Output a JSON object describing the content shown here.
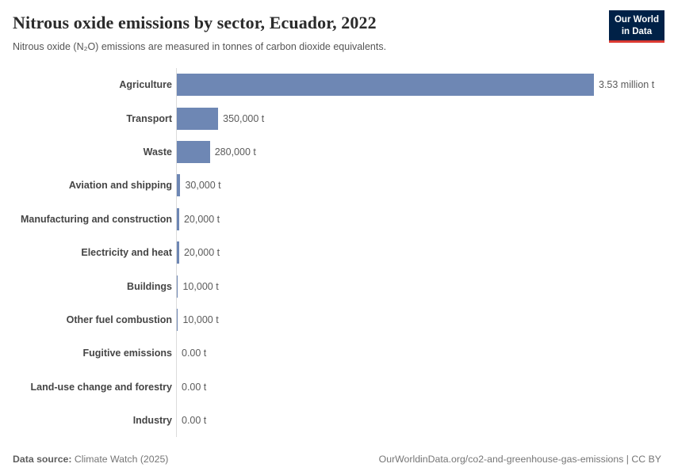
{
  "header": {
    "title": "Nitrous oxide emissions by sector, Ecuador, 2022",
    "subtitle": "Nitrous oxide (N₂O) emissions are measured in tonnes of carbon dioxide equivalents.",
    "logo": {
      "line1": "Our World",
      "line2": "in Data"
    }
  },
  "chart_data": {
    "type": "bar",
    "orientation": "horizontal",
    "title": "Nitrous oxide emissions by sector, Ecuador, 2022",
    "subtitle": "Nitrous oxide (N₂O) emissions are measured in tonnes of carbon dioxide equivalents.",
    "unit": "tonnes of CO₂ equivalents",
    "categories": [
      "Agriculture",
      "Transport",
      "Waste",
      "Aviation and shipping",
      "Manufacturing and construction",
      "Electricity and heat",
      "Buildings",
      "Other fuel combustion",
      "Fugitive emissions",
      "Land-use change and forestry",
      "Industry"
    ],
    "values": [
      3530000,
      350000,
      280000,
      30000,
      20000,
      20000,
      10000,
      10000,
      0,
      0,
      0
    ],
    "value_labels": [
      "3.53 million t",
      "350,000 t",
      "280,000 t",
      "30,000 t",
      "20,000 t",
      "20,000 t",
      "10,000 t",
      "10,000 t",
      "0.00 t",
      "0.00 t",
      "0.00 t"
    ],
    "xlim": [
      0,
      3530000
    ],
    "grid": false,
    "legend": "none",
    "bar_color": "#6e87b4",
    "axis_line_color": "#dbdbdb"
  },
  "footer": {
    "source_label": "Data source:",
    "source_value": "Climate Watch (2025)",
    "link": "OurWorldinData.org/co2-and-greenhouse-gas-emissions | CC BY"
  }
}
